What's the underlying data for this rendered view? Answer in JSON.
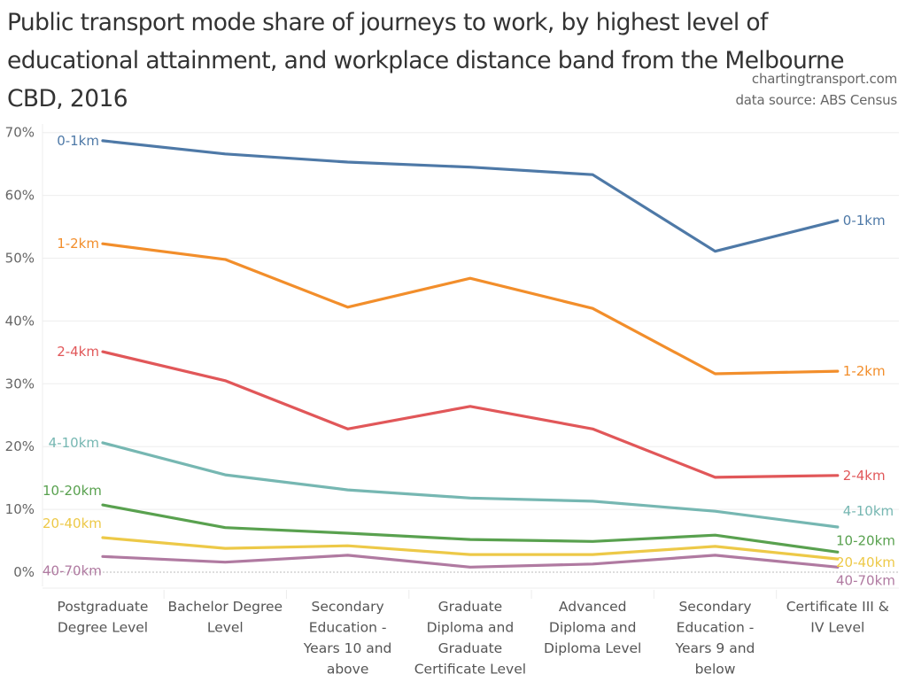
{
  "header": {
    "title": "Public transport mode share of journeys to work, by highest level of educational attainment, and workplace distance band from the Melbourne CBD, 2016",
    "credit_site": "chartingtransport.com",
    "credit_source": "data source: ABS Census"
  },
  "chart_data": {
    "type": "line",
    "title": "Public transport mode share of journeys to work, by highest level of educational attainment, and workplace distance band from the Melbourne CBD, 2016",
    "xlabel": "",
    "ylabel": "",
    "ylim": [
      0,
      70
    ],
    "yticks": [
      0,
      10,
      20,
      30,
      40,
      50,
      60,
      70
    ],
    "ytick_labels": [
      "0%",
      "10%",
      "20%",
      "30%",
      "40%",
      "50%",
      "60%",
      "70%"
    ],
    "grid": true,
    "legend": "direct labels at line start and end",
    "categories": [
      "Postgraduate Degree Level",
      "Bachelor Degree Level",
      "Secondary Education - Years 10 and above",
      "Graduate Diploma and Graduate Certificate Level",
      "Advanced Diploma and Diploma Level",
      "Secondary Education - Years 9 and below",
      "Certificate III & IV Level"
    ],
    "category_lines": [
      [
        "Postgraduate",
        "Degree Level"
      ],
      [
        "Bachelor Degree",
        "Level"
      ],
      [
        "Secondary",
        "Education -",
        "Years 10 and",
        "above"
      ],
      [
        "Graduate",
        "Diploma and",
        "Graduate",
        "Certificate Level"
      ],
      [
        "Advanced",
        "Diploma and",
        "Diploma Level"
      ],
      [
        "Secondary",
        "Education -",
        "Years 9 and",
        "below"
      ],
      [
        "Certificate III &",
        "IV Level"
      ]
    ],
    "series": [
      {
        "name": "0-1km",
        "color": "#4e79a7",
        "values": [
          68.7,
          66.6,
          65.3,
          64.5,
          63.3,
          51.1,
          56.0
        ]
      },
      {
        "name": "1-2km",
        "color": "#f28e2b",
        "values": [
          52.3,
          49.8,
          42.2,
          46.8,
          42.0,
          31.6,
          32.0
        ]
      },
      {
        "name": "2-4km",
        "color": "#e15759",
        "values": [
          35.1,
          30.5,
          22.8,
          26.4,
          22.8,
          15.1,
          15.4
        ]
      },
      {
        "name": "4-10km",
        "color": "#76b7b2",
        "values": [
          20.6,
          15.5,
          13.1,
          11.8,
          11.3,
          9.7,
          7.2
        ]
      },
      {
        "name": "10-20km",
        "color": "#59a14f",
        "values": [
          10.7,
          7.1,
          6.2,
          5.2,
          4.9,
          5.9,
          3.2
        ]
      },
      {
        "name": "20-40km",
        "color": "#edc948",
        "values": [
          5.5,
          3.8,
          4.2,
          2.8,
          2.8,
          4.1,
          2.1
        ]
      },
      {
        "name": "40-70km",
        "color": "#b07aa1",
        "values": [
          2.5,
          1.6,
          2.7,
          0.8,
          1.3,
          2.7,
          0.8
        ]
      }
    ]
  }
}
